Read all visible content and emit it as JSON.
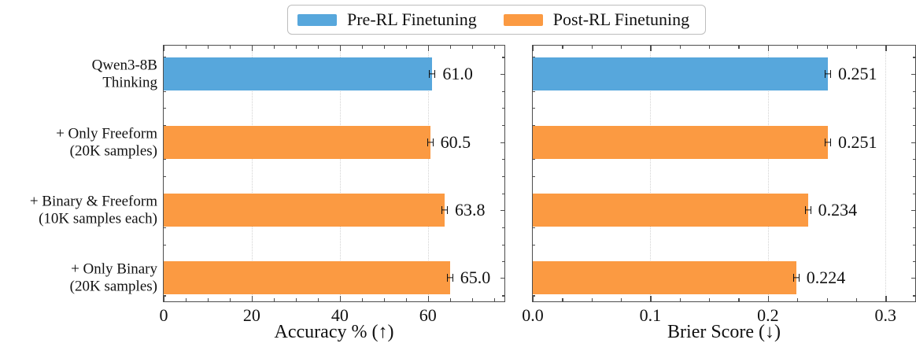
{
  "legend": {
    "items": [
      {
        "name": "pre-rl-finetuning",
        "label": "Pre-RL Finetuning",
        "color": "#57A7DC"
      },
      {
        "name": "post-rl-finetuning",
        "label": "Post-RL Finetuning",
        "color": "#FB9A42"
      }
    ]
  },
  "categories": [
    {
      "lines": [
        "Qwen3-8B",
        "Thinking"
      ]
    },
    {
      "lines": [
        "+ Only Freeform",
        "(20K samples)"
      ]
    },
    {
      "lines": [
        "+ Binary & Freeform",
        "(10K samples each)"
      ]
    },
    {
      "lines": [
        "+ Only Binary",
        "(20K samples)"
      ]
    }
  ],
  "chart_data": [
    {
      "type": "bar",
      "orientation": "horizontal",
      "categories": [
        "Qwen3-8B Thinking",
        "+ Only Freeform (20K samples)",
        "+ Binary & Freeform (10K samples each)",
        "+ Only Binary (20K samples)"
      ],
      "series_per_bar": [
        "pre-rl",
        "post-rl",
        "post-rl",
        "post-rl"
      ],
      "values": [
        61.0,
        60.5,
        63.8,
        65.0
      ],
      "value_labels": [
        "61.0",
        "60.5",
        "63.8",
        "65.0"
      ],
      "error_estimate": [
        0.6,
        0.6,
        0.6,
        0.6
      ],
      "xlabel": "Accuracy % (↑)",
      "xlim": [
        0,
        77.3
      ],
      "xticks": [
        0,
        20,
        40,
        60
      ],
      "xtick_labels": [
        "0",
        "20",
        "40",
        "60"
      ],
      "minor_tick_step": 5,
      "grid": "vertical dotted lines at major x ticks",
      "legend_position": "top center, shared between panels"
    },
    {
      "type": "bar",
      "orientation": "horizontal",
      "categories": [
        "Qwen3-8B Thinking",
        "+ Only Freeform (20K samples)",
        "+ Binary & Freeform (10K samples each)",
        "+ Only Binary (20K samples)"
      ],
      "series_per_bar": [
        "pre-rl",
        "post-rl",
        "post-rl",
        "post-rl"
      ],
      "values": [
        0.251,
        0.251,
        0.234,
        0.224
      ],
      "value_labels": [
        "0.251",
        "0.251",
        "0.234",
        "0.224"
      ],
      "error_estimate": [
        0.002,
        0.002,
        0.002,
        0.002
      ],
      "xlabel": "Brier Score (↓)",
      "xlim": [
        0,
        0.325
      ],
      "xticks": [
        0,
        0.1,
        0.2,
        0.3
      ],
      "xtick_labels": [
        "0.0",
        "0.1",
        "0.2",
        "0.3"
      ],
      "minor_tick_step": 0.025,
      "grid": "vertical dotted lines at major x ticks",
      "legend_position": "top center, shared between panels"
    }
  ],
  "colors": {
    "pre_rl": "#57A7DC",
    "post_rl": "#FB9A42",
    "grid": "#D2D2D2",
    "spine": "#4D4D4D",
    "text": "#111111",
    "error_bar": "#111111",
    "legend_border": "#BDBDBD"
  }
}
